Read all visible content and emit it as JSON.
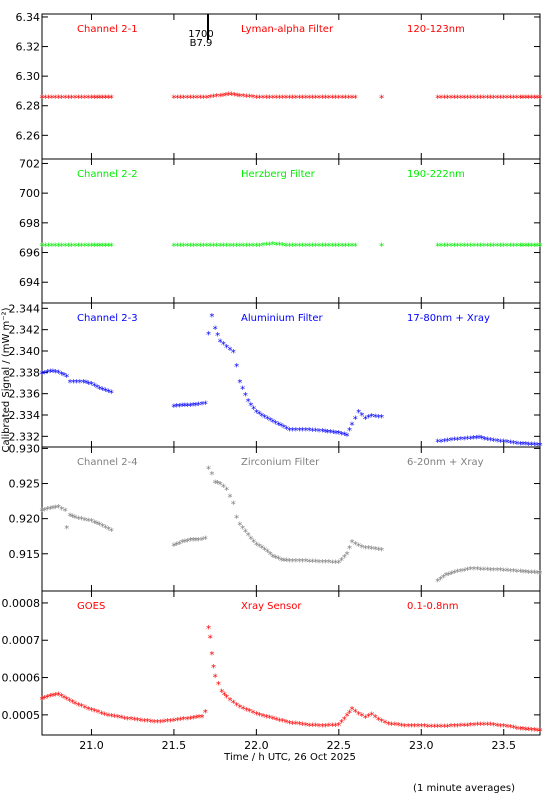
{
  "x_axis_label": "Time / h UTC, 26 Oct 2025",
  "y_axis_label": "Calibrated Signal / (mW m⁻²)",
  "footnote": "(1 minute averages)",
  "annotation": {
    "time_label": "1700",
    "value_label": "B7.9"
  },
  "chart_data": [
    {
      "type": "scatter",
      "channel_label": "Channel 2-1",
      "filter_label": "Lyman-alpha Filter",
      "band_label": "120-123nm",
      "color": "#ff0000",
      "xlim": [
        20.7,
        23.72
      ],
      "ylim": [
        6.244,
        6.342
      ],
      "y_ticks": [
        "6.26",
        "6.28",
        "6.30",
        "6.32",
        "6.34"
      ],
      "x": [
        20.7,
        20.8,
        20.9,
        21.0,
        21.12,
        21.5,
        21.6,
        21.7,
        21.78,
        21.85,
        21.9,
        22.0,
        22.1,
        22.2,
        22.3,
        22.4,
        22.5,
        22.6,
        22.76,
        23.1,
        23.2,
        23.3,
        23.4,
        23.5,
        23.6,
        23.72
      ],
      "y": [
        6.285,
        6.285,
        6.285,
        6.285,
        6.285,
        6.285,
        6.285,
        6.285,
        6.286,
        6.287,
        6.286,
        6.285,
        6.285,
        6.285,
        6.285,
        6.285,
        6.285,
        6.285,
        6.285,
        6.285,
        6.285,
        6.285,
        6.285,
        6.285,
        6.285,
        6.285
      ]
    },
    {
      "type": "scatter",
      "channel_label": "Channel 2-2",
      "filter_label": "Herzberg Filter",
      "band_label": "190-222nm",
      "color": "#00ee00",
      "xlim": [
        20.7,
        23.72
      ],
      "ylim": [
        692.6,
        702.3
      ],
      "y_ticks": [
        "694",
        "696",
        "698",
        "700",
        "702"
      ],
      "x": [
        20.7,
        20.8,
        20.9,
        21.0,
        21.12,
        21.5,
        21.6,
        21.7,
        21.8,
        21.9,
        22.0,
        22.1,
        22.2,
        22.3,
        22.4,
        22.5,
        22.6,
        22.76,
        23.1,
        23.2,
        23.3,
        23.4,
        23.5,
        23.6,
        23.72
      ],
      "y": [
        696.4,
        696.4,
        696.4,
        696.4,
        696.4,
        696.4,
        696.4,
        696.4,
        696.4,
        696.4,
        696.4,
        696.5,
        696.4,
        696.4,
        696.4,
        696.4,
        696.4,
        696.4,
        696.4,
        696.4,
        696.4,
        696.4,
        696.4,
        696.4,
        696.4
      ]
    },
    {
      "type": "scatter",
      "channel_label": "Channel 2-3",
      "filter_label": "Aluminium Filter",
      "band_label": "17-80nm + Xray",
      "color": "#0000ff",
      "xlim": [
        20.7,
        23.72
      ],
      "ylim": [
        2.331,
        2.3445
      ],
      "y_ticks": [
        "2.332",
        "2.334",
        "2.336",
        "2.338",
        "2.340",
        "2.342",
        "2.344"
      ],
      "x": [
        20.7,
        20.75,
        20.8,
        20.85,
        20.87,
        20.95,
        21.0,
        21.05,
        21.12,
        21.5,
        21.55,
        21.6,
        21.65,
        21.69,
        21.71,
        21.73,
        21.75,
        21.78,
        21.82,
        21.86,
        21.88,
        21.9,
        21.95,
        22.0,
        22.05,
        22.1,
        22.15,
        22.2,
        22.3,
        22.4,
        22.45,
        22.5,
        22.55,
        22.58,
        22.62,
        22.66,
        22.7,
        22.76,
        23.1,
        23.2,
        23.3,
        23.35,
        23.4,
        23.5,
        23.6,
        23.72
      ],
      "y": [
        2.3378,
        2.338,
        2.3379,
        2.3375,
        2.337,
        2.337,
        2.3368,
        2.3364,
        2.336,
        2.3347,
        2.3348,
        2.3348,
        2.3349,
        2.335,
        2.3415,
        2.3432,
        2.342,
        2.3408,
        2.3403,
        2.3398,
        2.3385,
        2.337,
        2.3352,
        2.3342,
        2.3337,
        2.3333,
        2.3329,
        2.3325,
        2.3325,
        2.3324,
        2.3323,
        2.3322,
        2.332,
        2.333,
        2.3342,
        2.3336,
        2.3338,
        2.3337,
        2.3314,
        2.3316,
        2.3317,
        2.3318,
        2.3316,
        2.3314,
        2.3312,
        2.3311
      ]
    },
    {
      "type": "scatter",
      "channel_label": "Channel 2-4",
      "filter_label": "Zirconium Filter",
      "band_label": "6-20nm + Xray",
      "color": "#808080",
      "xlim": [
        20.7,
        23.72
      ],
      "ylim": [
        0.9097,
        0.9302
      ],
      "y_ticks": [
        "0.915",
        "0.920",
        "0.925",
        "0.930"
      ],
      "x": [
        20.7,
        20.75,
        20.8,
        20.84,
        20.85,
        20.87,
        20.9,
        21.0,
        21.05,
        21.12,
        21.5,
        21.55,
        21.6,
        21.65,
        21.69,
        21.71,
        21.73,
        21.75,
        21.78,
        21.82,
        21.86,
        21.88,
        21.9,
        21.95,
        22.0,
        22.05,
        22.1,
        22.15,
        22.2,
        22.3,
        22.4,
        22.5,
        22.55,
        22.58,
        22.62,
        22.66,
        22.7,
        22.76,
        23.1,
        23.15,
        23.2,
        23.3,
        23.4,
        23.5,
        23.6,
        23.72
      ],
      "y": [
        0.921,
        0.9213,
        0.9215,
        0.921,
        0.9185,
        0.9203,
        0.92,
        0.9195,
        0.919,
        0.9182,
        0.916,
        0.9165,
        0.9168,
        0.9168,
        0.917,
        0.927,
        0.9262,
        0.925,
        0.9248,
        0.924,
        0.922,
        0.92,
        0.919,
        0.9175,
        0.9162,
        0.9155,
        0.9145,
        0.914,
        0.9138,
        0.9138,
        0.9137,
        0.9136,
        0.9148,
        0.9165,
        0.916,
        0.9157,
        0.9156,
        0.9154,
        0.911,
        0.9118,
        0.9122,
        0.9127,
        0.9126,
        0.9125,
        0.9123,
        0.9121
      ]
    },
    {
      "type": "scatter",
      "channel_label": "GOES",
      "filter_label": "Xray Sensor",
      "band_label": "0.1-0.8nm",
      "color": "#ff0000",
      "xlim": [
        20.7,
        23.72
      ],
      "ylim": [
        0.000446,
        0.000832
      ],
      "y_ticks": [
        "0.0005",
        "0.0006",
        "0.0007",
        "0.0008"
      ],
      "x": [
        20.7,
        20.75,
        20.8,
        20.85,
        20.9,
        21.0,
        21.1,
        21.2,
        21.3,
        21.4,
        21.5,
        21.6,
        21.67,
        21.69,
        21.71,
        21.72,
        21.73,
        21.74,
        21.75,
        21.77,
        21.79,
        21.82,
        21.86,
        21.9,
        22.0,
        22.1,
        22.2,
        22.3,
        22.4,
        22.5,
        22.55,
        22.58,
        22.62,
        22.66,
        22.7,
        22.74,
        22.8,
        22.9,
        23.0,
        23.1,
        23.2,
        23.3,
        23.4,
        23.5,
        23.6,
        23.72
      ],
      "y": [
        0.00054,
        0.000548,
        0.000552,
        0.00054,
        0.000528,
        0.00051,
        0.000496,
        0.000488,
        0.000482,
        0.000478,
        0.000482,
        0.000488,
        0.000492,
        0.000505,
        0.00073,
        0.000705,
        0.00066,
        0.000625,
        0.0006,
        0.00058,
        0.00056,
        0.000545,
        0.00053,
        0.000518,
        0.0005,
        0.000487,
        0.000476,
        0.00047,
        0.000467,
        0.00047,
        0.000495,
        0.000513,
        0.0005,
        0.00049,
        0.000498,
        0.000485,
        0.000473,
        0.000468,
        0.000467,
        0.000466,
        0.000467,
        0.00047,
        0.000472,
        0.000467,
        0.00046,
        0.000455
      ]
    }
  ]
}
